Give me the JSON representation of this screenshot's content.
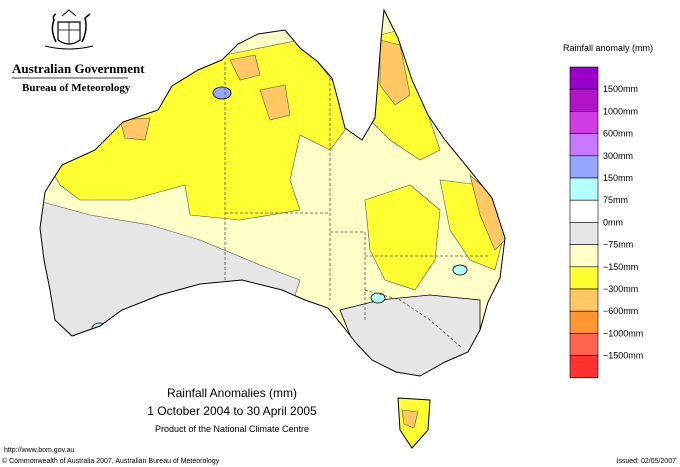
{
  "header": {
    "government": "Australian Government",
    "bureau": "Bureau of Meteorology"
  },
  "legend": {
    "title": "Rainfall anomaly (mm)",
    "colors": [
      "#9900cc",
      "#b414c8",
      "#d23ce6",
      "#c878ff",
      "#96a5ff",
      "#b4ffff",
      "#ffffff",
      "#e6e6e6",
      "#ffffc8",
      "#ffff32",
      "#ffc864",
      "#ff9632",
      "#ff6450",
      "#ff3232"
    ],
    "labels": [
      "1500mm",
      "1000mm",
      "600mm",
      "300mm",
      "150mm",
      "75mm",
      "0mm",
      "−75mm",
      "−150mm",
      "−300mm",
      "−600mm",
      "−1000mm",
      "−1500mm"
    ]
  },
  "map": {
    "title": "Rainfall Anomalies (mm)",
    "period": "1 October 2004 to 30 April 2005",
    "product": "Product of the National Climate Centre"
  },
  "footer": {
    "url": "http://www.bom.gov.au",
    "copyright": "© Commonwealth of Australia 2007, Australian Bureau of Meteorology",
    "issued": "Issued: 02/05/2007"
  }
}
